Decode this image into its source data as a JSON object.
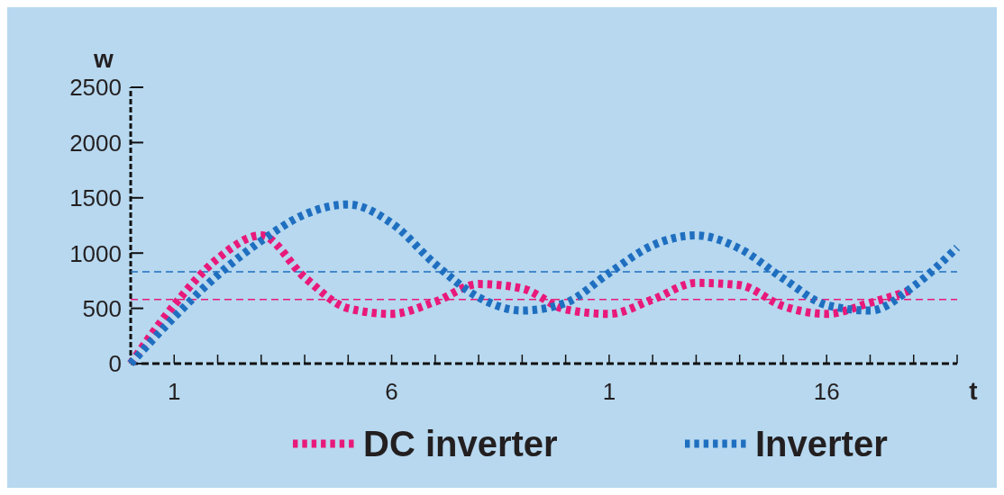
{
  "chart_data": {
    "type": "line",
    "xlabel": "t",
    "ylabel": "w",
    "categories": [
      null,
      "1",
      null,
      null,
      null,
      null,
      "6",
      null,
      null,
      null,
      null,
      "1",
      null,
      null,
      null,
      null,
      "16",
      null,
      null,
      null
    ],
    "ylim": [
      0,
      2500
    ],
    "yticks": [
      0,
      500,
      1000,
      1500,
      2000,
      2500
    ],
    "grid": false,
    "legend": "bottom",
    "line_style": "dotted",
    "marker": "none",
    "ref_lines": [
      {
        "axis": "y",
        "value": 830,
        "color": "#1f6fc0",
        "line_style": "dashed"
      },
      {
        "axis": "y",
        "value": 580,
        "color": "#e8197a",
        "line_style": "dashed"
      }
    ],
    "series": [
      {
        "name": "DC inverter",
        "color": "#e8197a",
        "values": [
          0,
          530,
          950,
          1160,
          780,
          500,
          450,
          560,
          720,
          680,
          490,
          450,
          580,
          730,
          710,
          520,
          450,
          550,
          670,
          null
        ]
      },
      {
        "name": "Inverter",
        "color": "#1f6fc0",
        "values": [
          0,
          420,
          800,
          1110,
          1350,
          1440,
          1270,
          900,
          600,
          480,
          550,
          820,
          1070,
          1160,
          1040,
          770,
          530,
          480,
          700,
          1050
        ]
      }
    ]
  }
}
